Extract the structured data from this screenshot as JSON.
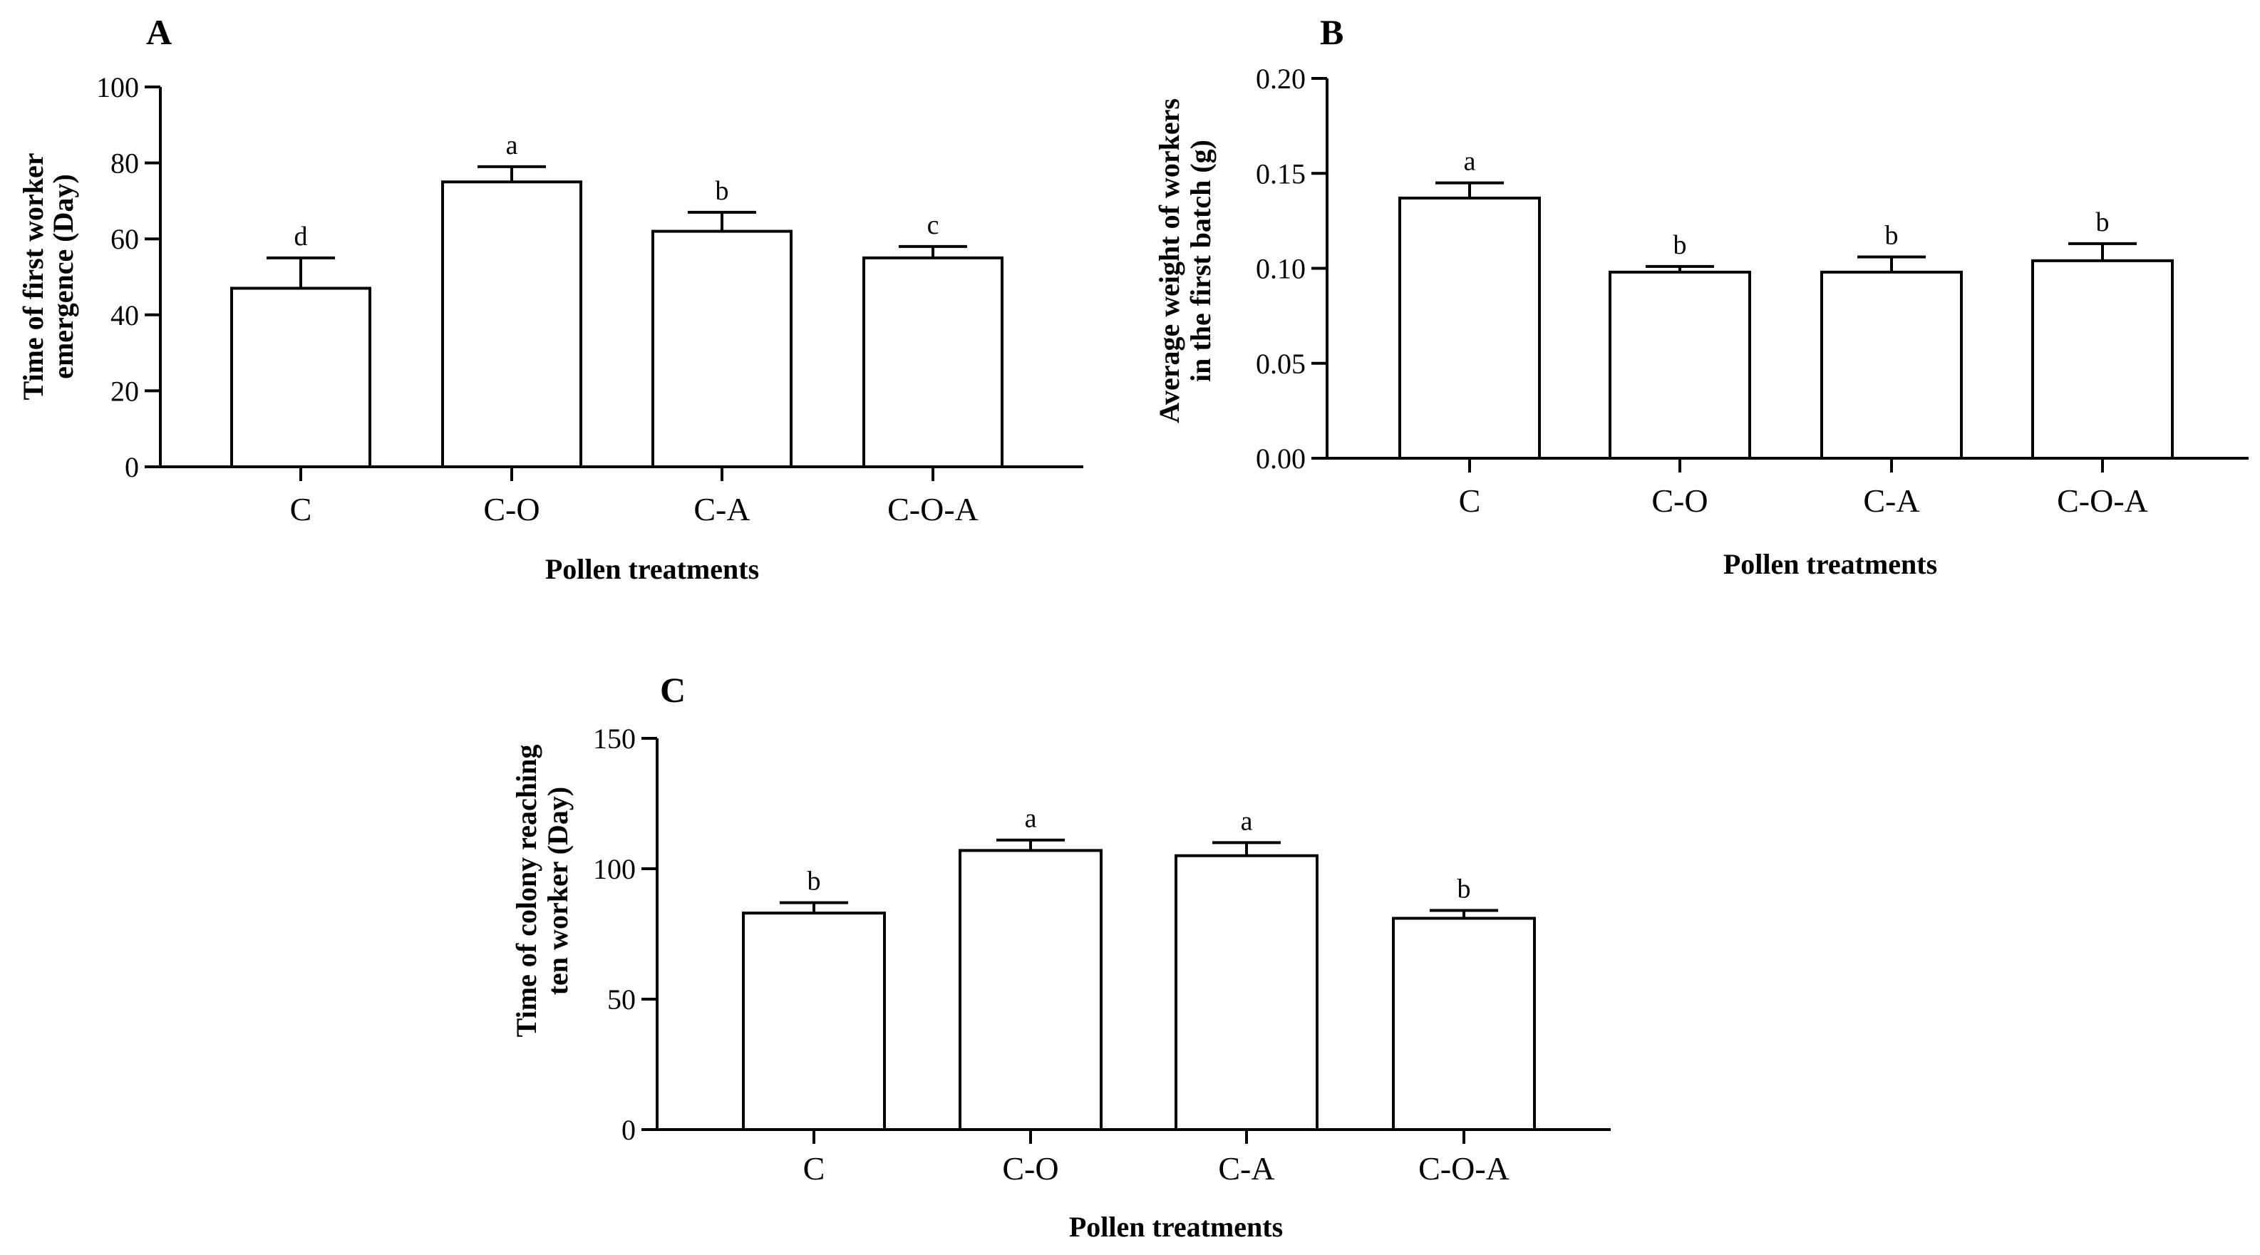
{
  "chart_data": [
    {
      "panel": "A",
      "type": "bar",
      "categories": [
        "C",
        "C-O",
        "C-A",
        "C-O-A"
      ],
      "values": [
        47,
        75,
        62,
        55
      ],
      "errors": [
        8,
        4,
        5,
        3
      ],
      "significance": [
        "d",
        "a",
        "b",
        "c"
      ],
      "xlabel": "Pollen treatments",
      "ylabel": [
        "Time of first worker",
        "emergence (Day)"
      ],
      "ylim": [
        0,
        100
      ],
      "yticks": [
        0,
        20,
        40,
        60,
        80,
        100
      ],
      "ytick_labels": [
        "0",
        "20",
        "40",
        "60",
        "80",
        "100"
      ]
    },
    {
      "panel": "B",
      "type": "bar",
      "categories": [
        "C",
        "C-O",
        "C-A",
        "C-O-A"
      ],
      "values": [
        0.137,
        0.098,
        0.098,
        0.104
      ],
      "errors": [
        0.008,
        0.003,
        0.008,
        0.009
      ],
      "significance": [
        "a",
        "b",
        "b",
        "b"
      ],
      "xlabel": "Pollen treatments",
      "ylabel": [
        "Average weight of workers",
        "in the first batch (g)"
      ],
      "ylim": [
        0,
        0.2
      ],
      "yticks": [
        0,
        0.05,
        0.1,
        0.15,
        0.2
      ],
      "ytick_labels": [
        "0.00",
        "0.05",
        "0.10",
        "0.15",
        "0.20"
      ]
    },
    {
      "panel": "C",
      "type": "bar",
      "categories": [
        "C",
        "C-O",
        "C-A",
        "C-O-A"
      ],
      "values": [
        83,
        107,
        105,
        81
      ],
      "errors": [
        4,
        4,
        5,
        3
      ],
      "significance": [
        "b",
        "a",
        "a",
        "b"
      ],
      "xlabel": "Pollen treatments",
      "ylabel": [
        "Time of colony reaching",
        "ten worker (Day)"
      ],
      "ylim": [
        0,
        150
      ],
      "yticks": [
        0,
        50,
        100,
        150
      ],
      "ytick_labels": [
        "0",
        "50",
        "100",
        "150"
      ]
    }
  ]
}
